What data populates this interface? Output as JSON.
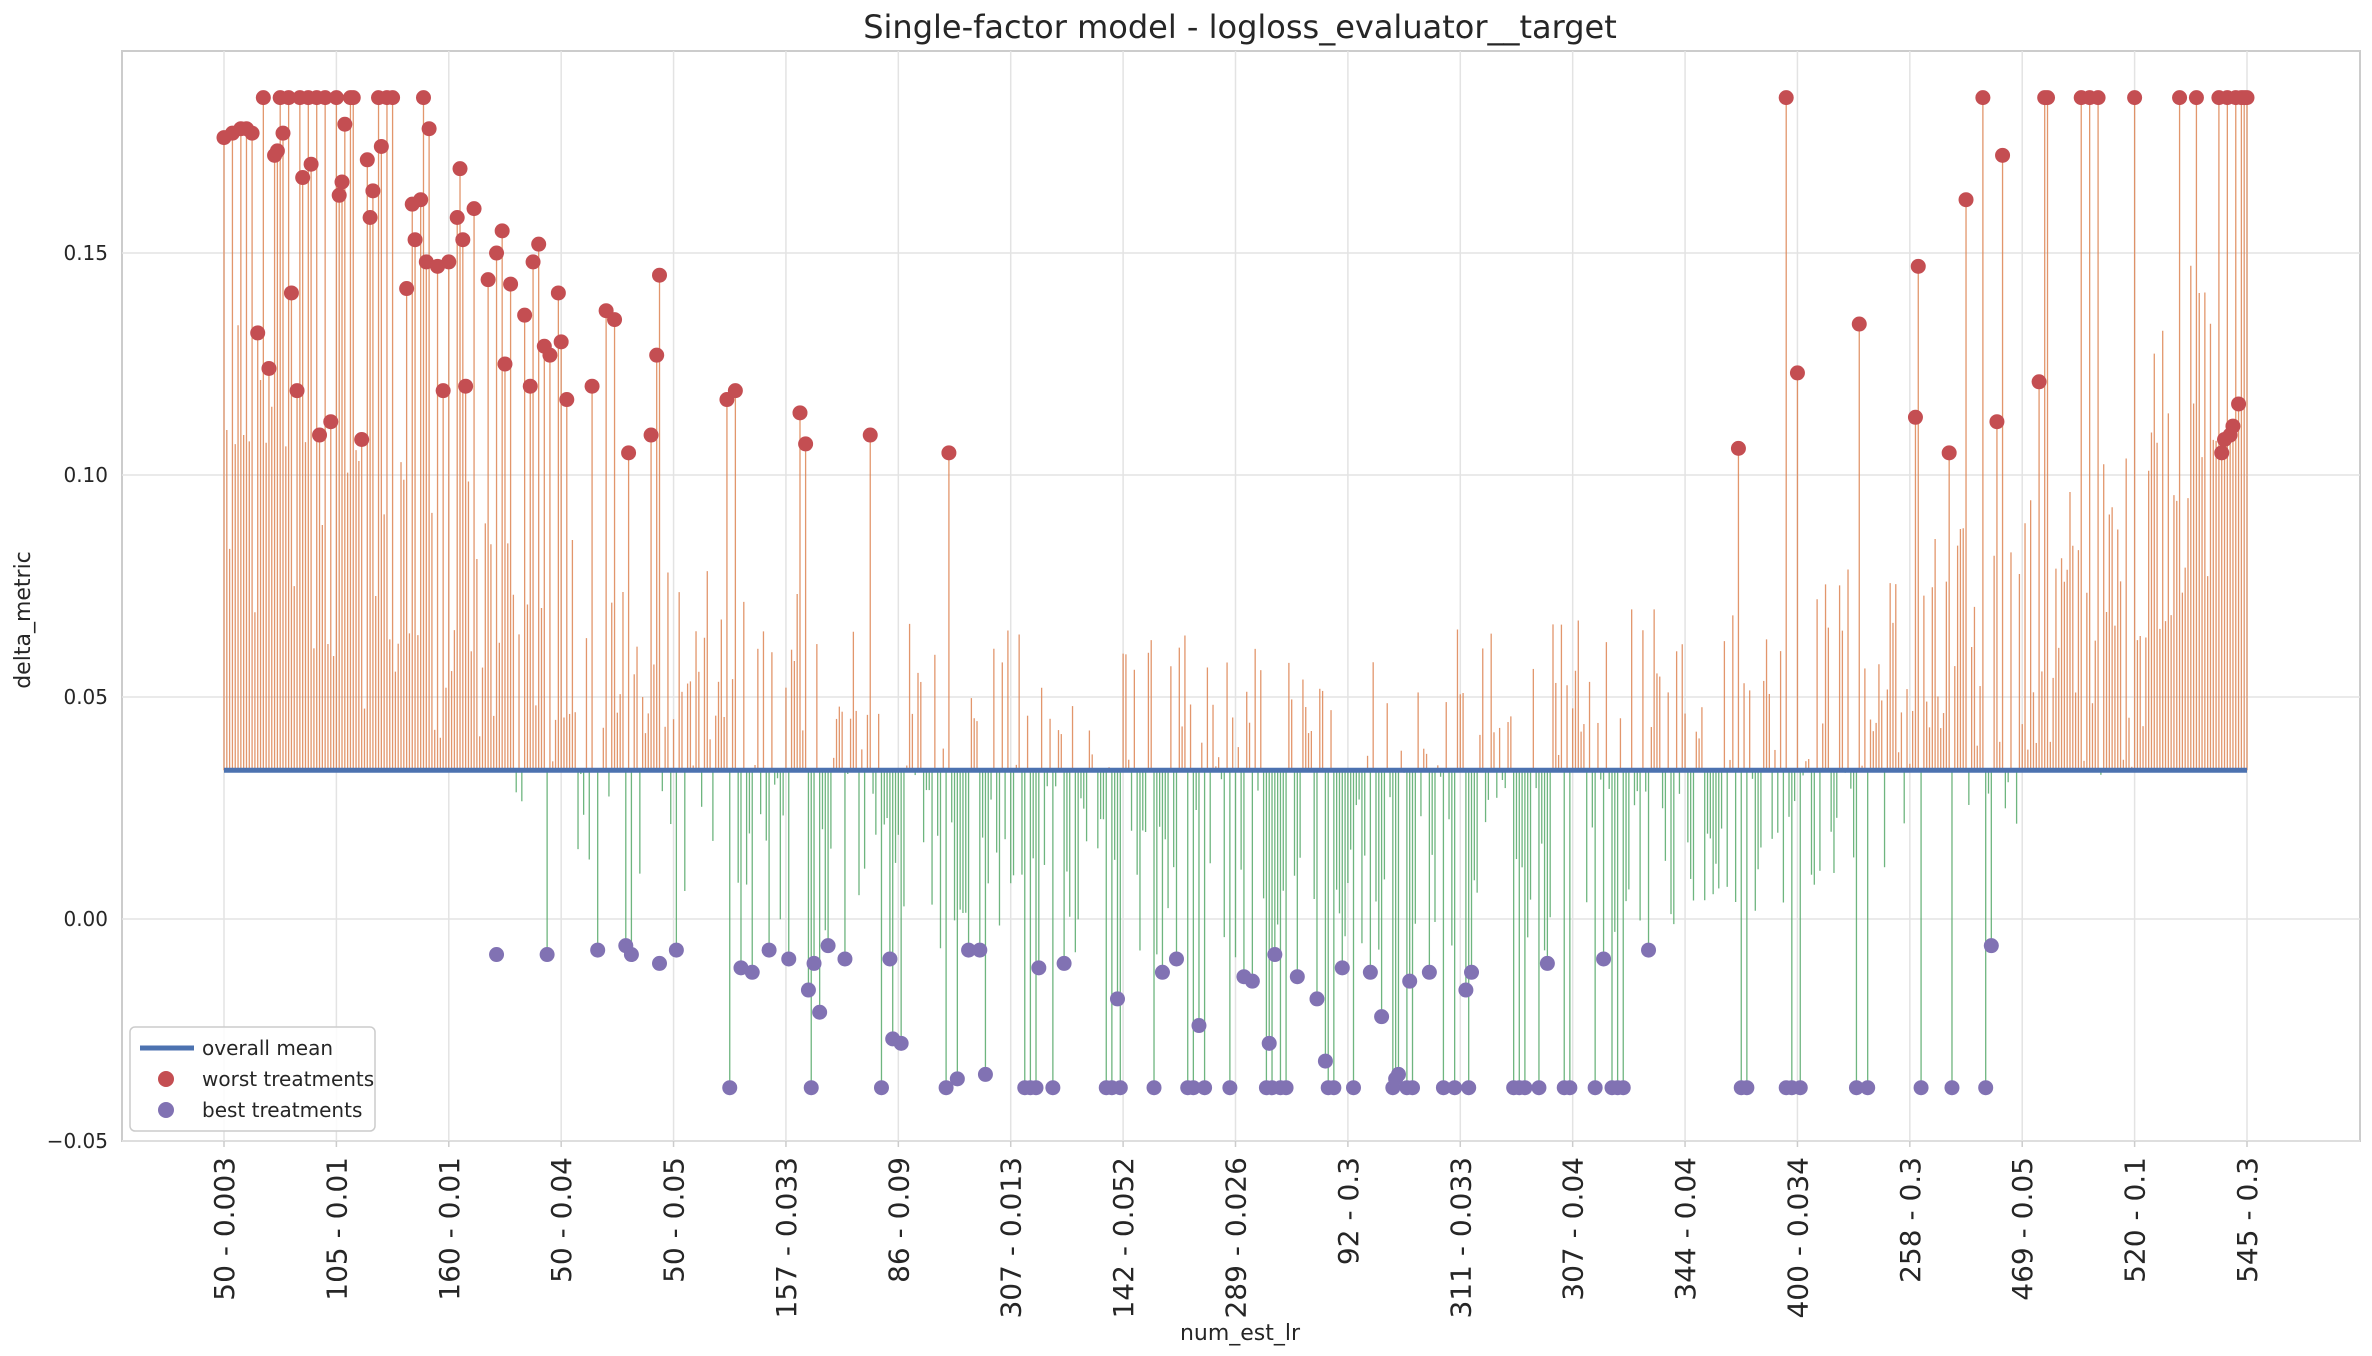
{
  "chart_data": {
    "type": "bar",
    "title": "Single-factor model - logloss_evaluator__target",
    "xlabel": "num_est_lr",
    "ylabel": "delta_metric",
    "ylim": [
      -0.05,
      0.1955
    ],
    "yticks": [
      "−0.05",
      "0.00",
      "0.05",
      "0.10",
      "0.15"
    ],
    "ytick_values": [
      -0.05,
      0.0,
      0.05,
      0.1,
      0.15
    ],
    "xticks": [
      "50 - 0.003",
      "105 - 0.01",
      "160 - 0.01",
      "50 - 0.04",
      "50 - 0.05",
      "157 - 0.033",
      "86 - 0.09",
      "307 - 0.013",
      "142 - 0.052",
      "289 - 0.026",
      "92 - 0.3",
      "311 - 0.033",
      "307 - 0.04",
      "344 - 0.04",
      "400 - 0.034",
      "258 - 0.3",
      "469 - 0.05",
      "520 - 0.1",
      "545 - 0.3"
    ],
    "xtick_index_step": 40,
    "n_treatments": 721,
    "overall_mean": 0.0335,
    "grid": true,
    "legend_position": "lower-left",
    "legend": [
      "overall mean",
      "worst treatments",
      "best treatments"
    ],
    "colors": {
      "above_mean_line": "#dd8452",
      "below_mean_line": "#55a868",
      "mean_line": "#4c72b0",
      "worst_marker": "#c44e52",
      "best_marker": "#8172b3"
    },
    "worst_treatments": [
      [
        0,
        0.176
      ],
      [
        3,
        0.177
      ],
      [
        6,
        0.178
      ],
      [
        8,
        0.178
      ],
      [
        10,
        0.177
      ],
      [
        12,
        0.132
      ],
      [
        14,
        0.185
      ],
      [
        16,
        0.124
      ],
      [
        18,
        0.172
      ],
      [
        19,
        0.173
      ],
      [
        20,
        0.185
      ],
      [
        21,
        0.177
      ],
      [
        23,
        0.185
      ],
      [
        24,
        0.141
      ],
      [
        26,
        0.119
      ],
      [
        27,
        0.185
      ],
      [
        28,
        0.167
      ],
      [
        30,
        0.185
      ],
      [
        31,
        0.17
      ],
      [
        33,
        0.185
      ],
      [
        34,
        0.109
      ],
      [
        36,
        0.185
      ],
      [
        38,
        0.112
      ],
      [
        40,
        0.185
      ],
      [
        41,
        0.163
      ],
      [
        42,
        0.166
      ],
      [
        43,
        0.179
      ],
      [
        45,
        0.185
      ],
      [
        46,
        0.185
      ],
      [
        49,
        0.108
      ],
      [
        51,
        0.171
      ],
      [
        52,
        0.158
      ],
      [
        53,
        0.164
      ],
      [
        55,
        0.185
      ],
      [
        56,
        0.174
      ],
      [
        58,
        0.185
      ],
      [
        60,
        0.185
      ],
      [
        65,
        0.142
      ],
      [
        67,
        0.161
      ],
      [
        68,
        0.153
      ],
      [
        70,
        0.162
      ],
      [
        71,
        0.185
      ],
      [
        72,
        0.148
      ],
      [
        73,
        0.178
      ],
      [
        76,
        0.147
      ],
      [
        78,
        0.119
      ],
      [
        80,
        0.148
      ],
      [
        83,
        0.158
      ],
      [
        84,
        0.169
      ],
      [
        85,
        0.153
      ],
      [
        86,
        0.12
      ],
      [
        89,
        0.16
      ],
      [
        94,
        0.144
      ],
      [
        97,
        0.15
      ],
      [
        99,
        0.155
      ],
      [
        100,
        0.125
      ],
      [
        102,
        0.143
      ],
      [
        107,
        0.136
      ],
      [
        109,
        0.12
      ],
      [
        110,
        0.148
      ],
      [
        112,
        0.152
      ],
      [
        114,
        0.129
      ],
      [
        116,
        0.127
      ],
      [
        119,
        0.141
      ],
      [
        120,
        0.13
      ],
      [
        122,
        0.117
      ],
      [
        131,
        0.12
      ],
      [
        136,
        0.137
      ],
      [
        139,
        0.135
      ],
      [
        144,
        0.105
      ],
      [
        152,
        0.109
      ],
      [
        154,
        0.127
      ],
      [
        155,
        0.145
      ],
      [
        179,
        0.117
      ],
      [
        182,
        0.119
      ],
      [
        205,
        0.114
      ],
      [
        207,
        0.107
      ],
      [
        230,
        0.109
      ],
      [
        258,
        0.105
      ],
      [
        539,
        0.106
      ],
      [
        556,
        0.185
      ],
      [
        560,
        0.123
      ],
      [
        582,
        0.134
      ],
      [
        602,
        0.113
      ],
      [
        603,
        0.147
      ],
      [
        614,
        0.105
      ],
      [
        620,
        0.162
      ],
      [
        626,
        0.185
      ],
      [
        631,
        0.112
      ],
      [
        633,
        0.172
      ],
      [
        646,
        0.121
      ],
      [
        648,
        0.185
      ],
      [
        649,
        0.185
      ],
      [
        661,
        0.185
      ],
      [
        664,
        0.185
      ],
      [
        667,
        0.185
      ],
      [
        680,
        0.185
      ],
      [
        696,
        0.185
      ],
      [
        702,
        0.185
      ],
      [
        710,
        0.185
      ],
      [
        711,
        0.105
      ],
      [
        712,
        0.108
      ],
      [
        713,
        0.185
      ],
      [
        714,
        0.109
      ],
      [
        715,
        0.111
      ],
      [
        716,
        0.185
      ],
      [
        717,
        0.116
      ],
      [
        718,
        0.185
      ],
      [
        719,
        0.185
      ],
      [
        720,
        0.185
      ]
    ],
    "best_treatments": [
      [
        97,
        -0.008
      ],
      [
        115,
        -0.008
      ],
      [
        133,
        -0.007
      ],
      [
        143,
        -0.006
      ],
      [
        145,
        -0.008
      ],
      [
        155,
        -0.01
      ],
      [
        161,
        -0.007
      ],
      [
        180,
        -0.038
      ],
      [
        184,
        -0.011
      ],
      [
        188,
        -0.012
      ],
      [
        194,
        -0.007
      ],
      [
        201,
        -0.009
      ],
      [
        208,
        -0.016
      ],
      [
        209,
        -0.038
      ],
      [
        210,
        -0.01
      ],
      [
        212,
        -0.021
      ],
      [
        215,
        -0.006
      ],
      [
        221,
        -0.009
      ],
      [
        234,
        -0.038
      ],
      [
        237,
        -0.009
      ],
      [
        238,
        -0.027
      ],
      [
        241,
        -0.028
      ],
      [
        257,
        -0.038
      ],
      [
        261,
        -0.036
      ],
      [
        265,
        -0.007
      ],
      [
        269,
        -0.007
      ],
      [
        271,
        -0.035
      ],
      [
        285,
        -0.038
      ],
      [
        287,
        -0.038
      ],
      [
        289,
        -0.038
      ],
      [
        290,
        -0.011
      ],
      [
        295,
        -0.038
      ],
      [
        299,
        -0.01
      ],
      [
        314,
        -0.038
      ],
      [
        316,
        -0.038
      ],
      [
        318,
        -0.018
      ],
      [
        319,
        -0.038
      ],
      [
        331,
        -0.038
      ],
      [
        334,
        -0.012
      ],
      [
        339,
        -0.009
      ],
      [
        343,
        -0.038
      ],
      [
        345,
        -0.038
      ],
      [
        347,
        -0.024
      ],
      [
        349,
        -0.038
      ],
      [
        358,
        -0.038
      ],
      [
        363,
        -0.013
      ],
      [
        366,
        -0.014
      ],
      [
        371,
        -0.038
      ],
      [
        372,
        -0.028
      ],
      [
        373,
        -0.038
      ],
      [
        374,
        -0.008
      ],
      [
        376,
        -0.038
      ],
      [
        378,
        -0.038
      ],
      [
        382,
        -0.013
      ],
      [
        389,
        -0.018
      ],
      [
        392,
        -0.032
      ],
      [
        393,
        -0.038
      ],
      [
        395,
        -0.038
      ],
      [
        398,
        -0.011
      ],
      [
        402,
        -0.038
      ],
      [
        408,
        -0.012
      ],
      [
        412,
        -0.022
      ],
      [
        416,
        -0.038
      ],
      [
        417,
        -0.036
      ],
      [
        418,
        -0.035
      ],
      [
        421,
        -0.038
      ],
      [
        422,
        -0.014
      ],
      [
        423,
        -0.038
      ],
      [
        429,
        -0.012
      ],
      [
        434,
        -0.038
      ],
      [
        438,
        -0.038
      ],
      [
        442,
        -0.016
      ],
      [
        443,
        -0.038
      ],
      [
        444,
        -0.012
      ],
      [
        459,
        -0.038
      ],
      [
        461,
        -0.038
      ],
      [
        463,
        -0.038
      ],
      [
        468,
        -0.038
      ],
      [
        471,
        -0.01
      ],
      [
        477,
        -0.038
      ],
      [
        479,
        -0.038
      ],
      [
        488,
        -0.038
      ],
      [
        491,
        -0.009
      ],
      [
        494,
        -0.038
      ],
      [
        496,
        -0.038
      ],
      [
        498,
        -0.038
      ],
      [
        507,
        -0.007
      ],
      [
        540,
        -0.038
      ],
      [
        542,
        -0.038
      ],
      [
        556,
        -0.038
      ],
      [
        558,
        -0.038
      ],
      [
        561,
        -0.038
      ],
      [
        581,
        -0.038
      ],
      [
        585,
        -0.038
      ],
      [
        604,
        -0.038
      ],
      [
        615,
        -0.038
      ],
      [
        627,
        -0.038
      ],
      [
        629,
        -0.006
      ]
    ]
  }
}
